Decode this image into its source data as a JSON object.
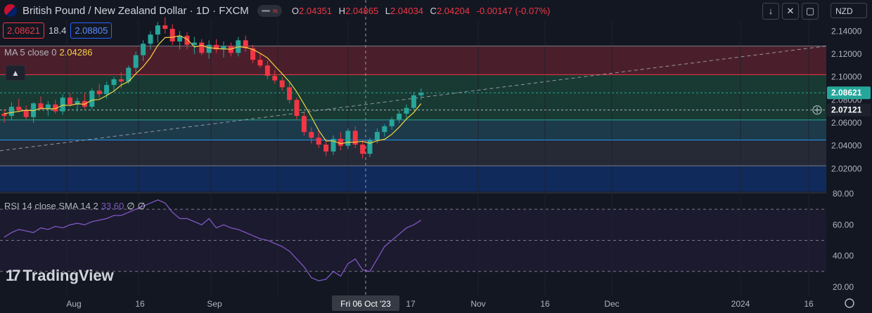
{
  "header": {
    "symbol_title": "British Pound / New Zealand Dollar · 1D · FXCM",
    "wave_icon": "≈",
    "ohlc": {
      "o_label": "O",
      "o": "2.04351",
      "h_label": "H",
      "h": "2.04865",
      "l_label": "L",
      "l": "2.04034",
      "c_label": "C",
      "c": "2.04204",
      "change": "-0.00147 (-0.07%)"
    }
  },
  "quote": {
    "bid": "2.08621",
    "spread": "18.4",
    "ask": "2.08805"
  },
  "ma": {
    "label": "MA 5 close 0",
    "value": "2.04286"
  },
  "rsi_legend": {
    "label": "RSI 14 close SMA 14 2",
    "value": "33.60",
    "na1": "∅",
    "na2": "∅"
  },
  "toolbar": {
    "currency": "NZD"
  },
  "logo": {
    "mark": "17",
    "text": "TradingView"
  },
  "colors": {
    "up": "#26a69a",
    "down": "#f23645",
    "ma": "#f5d442",
    "rsi": "#7e57c2"
  },
  "chart_data": {
    "type": "candlestick",
    "price_axis": {
      "range": [
        2.0,
        2.15
      ],
      "ticks": [
        "2.14000",
        "2.12000",
        "2.10000",
        "2.08000",
        "2.06000",
        "2.04000",
        "2.02000"
      ]
    },
    "rsi_axis": {
      "range": [
        15,
        80
      ],
      "ticks": [
        "80.00",
        "60.00",
        "40.00",
        "20.00"
      ],
      "bands": [
        70,
        50,
        30
      ]
    },
    "x_axis": {
      "labels": [
        "Aug",
        "16",
        "Sep",
        "Fri 06 Oct '23",
        "17",
        "Nov",
        "16",
        "Dec",
        "2024",
        "16"
      ],
      "crosshair_date": "Fri 06 Oct '23"
    },
    "price_labels": [
      {
        "text": "2.08621",
        "value": 2.08621,
        "color": "#26a69a"
      },
      {
        "text": "2.07121",
        "value": 2.07121,
        "color": "#1e222d"
      }
    ],
    "horizontal_levels": [
      2.127,
      2.102,
      2.0862,
      2.0712,
      2.0625,
      2.045,
      2.0225
    ],
    "zones": [
      {
        "from": 2.102,
        "to": 2.127,
        "color": "#4a1f2b"
      },
      {
        "from": 2.0625,
        "to": 2.102,
        "color": "#183a33"
      },
      {
        "from": 2.045,
        "to": 2.0625,
        "color": "#1d3a4a"
      },
      {
        "from": 2.0225,
        "to": 2.045,
        "color": "#262a36"
      },
      {
        "from": 2.0,
        "to": 2.0225,
        "color": "#102a5c"
      }
    ],
    "trendline": {
      "from": 2.038,
      "to": 2.127
    },
    "candles": [
      [
        2.068,
        2.072,
        2.06,
        2.066
      ],
      [
        2.066,
        2.078,
        2.062,
        2.074
      ],
      [
        2.074,
        2.081,
        2.069,
        2.071
      ],
      [
        2.071,
        2.075,
        2.063,
        2.065
      ],
      [
        2.065,
        2.078,
        2.06,
        2.077
      ],
      [
        2.077,
        2.083,
        2.071,
        2.072
      ],
      [
        2.072,
        2.079,
        2.066,
        2.076
      ],
      [
        2.076,
        2.08,
        2.068,
        2.07
      ],
      [
        2.07,
        2.085,
        2.067,
        2.082
      ],
      [
        2.082,
        2.086,
        2.074,
        2.076
      ],
      [
        2.076,
        2.082,
        2.07,
        2.079
      ],
      [
        2.079,
        2.086,
        2.072,
        2.074
      ],
      [
        2.074,
        2.09,
        2.072,
        2.088
      ],
      [
        2.088,
        2.094,
        2.082,
        2.085
      ],
      [
        2.085,
        2.096,
        2.081,
        2.093
      ],
      [
        2.093,
        2.1,
        2.087,
        2.098
      ],
      [
        2.098,
        2.104,
        2.09,
        2.096
      ],
      [
        2.096,
        2.11,
        2.094,
        2.108
      ],
      [
        2.108,
        2.122,
        2.104,
        2.119
      ],
      [
        2.119,
        2.132,
        2.114,
        2.129
      ],
      [
        2.129,
        2.14,
        2.124,
        2.137
      ],
      [
        2.137,
        2.148,
        2.13,
        2.145
      ],
      [
        2.145,
        2.152,
        2.138,
        2.142
      ],
      [
        2.142,
        2.146,
        2.128,
        2.131
      ],
      [
        2.131,
        2.14,
        2.124,
        2.136
      ],
      [
        2.136,
        2.139,
        2.124,
        2.128
      ],
      [
        2.128,
        2.135,
        2.12,
        2.13
      ],
      [
        2.13,
        2.133,
        2.119,
        2.121
      ],
      [
        2.121,
        2.132,
        2.116,
        2.128
      ],
      [
        2.128,
        2.133,
        2.121,
        2.124
      ],
      [
        2.124,
        2.131,
        2.117,
        2.127
      ],
      [
        2.127,
        2.13,
        2.118,
        2.121
      ],
      [
        2.121,
        2.135,
        2.118,
        2.132
      ],
      [
        2.132,
        2.136,
        2.122,
        2.125
      ],
      [
        2.125,
        2.128,
        2.112,
        2.115
      ],
      [
        2.115,
        2.12,
        2.108,
        2.11
      ],
      [
        2.11,
        2.114,
        2.098,
        2.101
      ],
      [
        2.101,
        2.106,
        2.094,
        2.097
      ],
      [
        2.097,
        2.1,
        2.088,
        2.091
      ],
      [
        2.091,
        2.095,
        2.077,
        2.08
      ],
      [
        2.08,
        2.082,
        2.063,
        2.066
      ],
      [
        2.066,
        2.069,
        2.049,
        2.052
      ],
      [
        2.052,
        2.056,
        2.042,
        2.047
      ],
      [
        2.047,
        2.053,
        2.038,
        2.041
      ],
      [
        2.041,
        2.046,
        2.031,
        2.035
      ],
      [
        2.035,
        2.049,
        2.032,
        2.046
      ],
      [
        2.046,
        2.052,
        2.036,
        2.04
      ],
      [
        2.04,
        2.055,
        2.037,
        2.053
      ],
      [
        2.053,
        2.057,
        2.038,
        2.041
      ],
      [
        2.041,
        2.045,
        2.029,
        2.033
      ],
      [
        2.033,
        2.047,
        2.03,
        2.045
      ],
      [
        2.045,
        2.055,
        2.042,
        2.052
      ],
      [
        2.052,
        2.059,
        2.048,
        2.057
      ],
      [
        2.057,
        2.065,
        2.054,
        2.063
      ],
      [
        2.063,
        2.071,
        2.06,
        2.068
      ],
      [
        2.068,
        2.076,
        2.064,
        2.073
      ],
      [
        2.073,
        2.087,
        2.071,
        2.084
      ],
      [
        2.084,
        2.09,
        2.08,
        2.0862
      ]
    ],
    "ma5": [
      2.068,
      2.069,
      2.07,
      2.071,
      2.0706,
      2.0728,
      2.0722,
      2.0724,
      2.0754,
      2.0752,
      2.0766,
      2.0762,
      2.0798,
      2.0804,
      2.0838,
      2.0876,
      2.093,
      2.096,
      2.1028,
      2.109,
      2.117,
      2.1276,
      2.1344,
      2.1346,
      2.136,
      2.133,
      2.1262,
      2.1275,
      2.1255,
      2.1249,
      2.1244,
      2.1243,
      2.1264,
      2.1258,
      2.124,
      2.1206,
      2.1166,
      2.1096,
      2.1028,
      2.0958,
      2.087,
      2.0762,
      2.0652,
      2.0534,
      2.0442,
      2.0442,
      2.0418,
      2.043,
      2.0432,
      2.0438,
      2.0422,
      2.0444,
      2.0456,
      2.05,
      2.0562,
      2.0634,
      2.069,
      2.0768
    ],
    "rsi": [
      52,
      55,
      57,
      56,
      55,
      58,
      57,
      59,
      58,
      60,
      61,
      60,
      62,
      63,
      64,
      66,
      66,
      68,
      70,
      72,
      74,
      76,
      74,
      68,
      64,
      64,
      62,
      60,
      64,
      58,
      60,
      58,
      57,
      55,
      53,
      51,
      50,
      48,
      46,
      43,
      38,
      33,
      26,
      24,
      25,
      30,
      27,
      35,
      38,
      31,
      30,
      38,
      46,
      50,
      54,
      58,
      60,
      63
    ]
  }
}
